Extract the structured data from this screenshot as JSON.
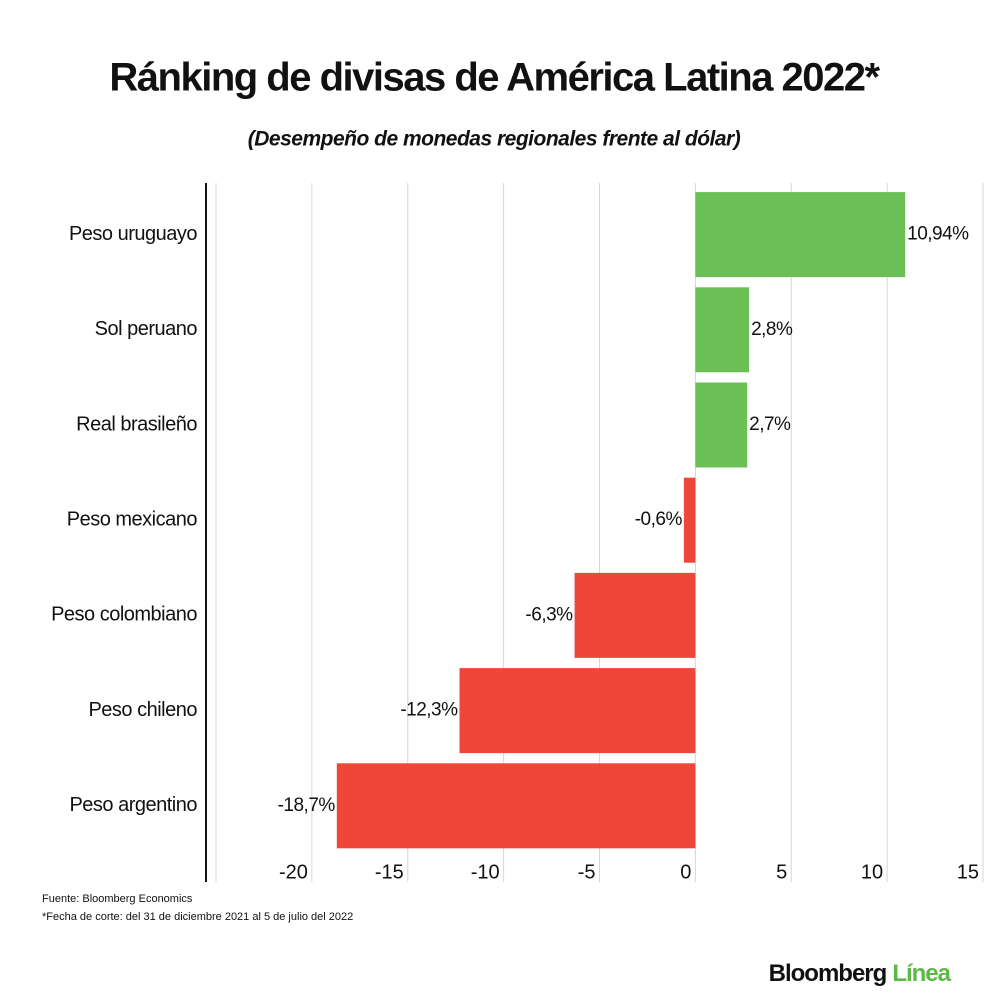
{
  "chart_data": {
    "type": "hbar",
    "title": "Ránking de divisas de América Latina 2022*",
    "subtitle": "(Desempeño de monedas regionales frente al dólar)",
    "categories": [
      "Peso uruguayo",
      "Sol peruano",
      "Real brasileño",
      "Peso mexicano",
      "Peso colombiano",
      "Peso chileno",
      "Peso argentino"
    ],
    "values": [
      10.94,
      2.8,
      2.7,
      -0.6,
      -6.3,
      -12.3,
      -18.7
    ],
    "value_labels": [
      "10,94%",
      "2,8%",
      "2,7%",
      "-0,6%",
      "-6,3%",
      "-12,3%",
      "-18,7%"
    ],
    "colors": [
      "#6abf55",
      "#6abf55",
      "#6abf55",
      "#ee4638",
      "#ee4638",
      "#ee4638",
      "#ee4638"
    ],
    "xlim": [
      -25,
      15
    ],
    "xticks": [
      -20,
      -15,
      -10,
      -5,
      0,
      5,
      10,
      15
    ],
    "grid": true,
    "notes": [
      "Fuente: Bloomberg Economics",
      "*Fecha de corte: del 31 de diciembre 2021 al 5 de julio del 2022"
    ],
    "logo": {
      "brand": "Bloomberg",
      "sub": "Línea"
    }
  }
}
